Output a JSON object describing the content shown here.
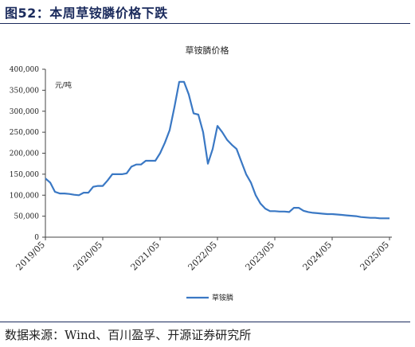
{
  "figure_title": "图52：本周草铵膦价格下跌",
  "source_note": "数据来源：Wind、百川盈孚、开源证券研究所",
  "chart_data": {
    "type": "line",
    "title": "草铵膦价格",
    "ylabel": "元/吨",
    "ylim": [
      0,
      400000
    ],
    "yticks": [
      "0",
      "50,000",
      "100,000",
      "150,000",
      "200,000",
      "250,000",
      "300,000",
      "350,000",
      "400,000"
    ],
    "ytick_values": [
      0,
      50000,
      100000,
      150000,
      200000,
      250000,
      300000,
      350000,
      400000
    ],
    "xticks": [
      "2019/05",
      "2020/05",
      "2021/05",
      "2022/05",
      "2023/05",
      "2024/05",
      "2025/05"
    ],
    "xtick_values": [
      "2019-05",
      "2020-05",
      "2021-05",
      "2022-05",
      "2023-05",
      "2024-05",
      "2025-05"
    ],
    "xlim": [
      "2019-05",
      "2025-05"
    ],
    "legend": "bottom",
    "grid": false,
    "line_color": "#3a78c4",
    "series": [
      {
        "name": "草铵膦",
        "x": [
          "2019-05",
          "2019-06",
          "2019-07",
          "2019-08",
          "2019-09",
          "2019-10",
          "2019-11",
          "2019-12",
          "2020-01",
          "2020-02",
          "2020-03",
          "2020-04",
          "2020-05",
          "2020-06",
          "2020-07",
          "2020-08",
          "2020-09",
          "2020-10",
          "2020-11",
          "2020-12",
          "2021-01",
          "2021-02",
          "2021-03",
          "2021-04",
          "2021-05",
          "2021-06",
          "2021-07",
          "2021-08",
          "2021-09",
          "2021-10",
          "2021-11",
          "2021-12",
          "2022-01",
          "2022-02",
          "2022-03",
          "2022-04",
          "2022-05",
          "2022-06",
          "2022-07",
          "2022-08",
          "2022-09",
          "2022-10",
          "2022-11",
          "2022-12",
          "2023-01",
          "2023-02",
          "2023-03",
          "2023-04",
          "2023-05",
          "2023-06",
          "2023-07",
          "2023-08",
          "2023-09",
          "2023-10",
          "2023-11",
          "2023-12",
          "2024-01",
          "2024-02",
          "2024-03",
          "2024-04",
          "2024-05",
          "2024-06",
          "2024-07",
          "2024-08",
          "2024-09",
          "2024-10",
          "2024-11",
          "2024-12",
          "2025-01",
          "2025-02",
          "2025-03",
          "2025-04",
          "2025-05"
        ],
        "values": [
          140000,
          130000,
          108000,
          104000,
          104000,
          103000,
          101000,
          100000,
          106000,
          106000,
          120000,
          122000,
          122000,
          135000,
          150000,
          150000,
          150000,
          152000,
          168000,
          173000,
          173000,
          182000,
          182000,
          182000,
          200000,
          225000,
          255000,
          310000,
          370000,
          370000,
          340000,
          295000,
          292000,
          250000,
          175000,
          210000,
          265000,
          250000,
          232000,
          220000,
          210000,
          180000,
          150000,
          130000,
          100000,
          80000,
          68000,
          62000,
          62000,
          61000,
          61000,
          60000,
          70000,
          70000,
          63000,
          60000,
          58000,
          57000,
          56000,
          55000,
          55000,
          54000,
          53000,
          52000,
          51000,
          50000,
          48000,
          47000,
          46000,
          46000,
          45000,
          45000,
          45000
        ]
      }
    ]
  }
}
